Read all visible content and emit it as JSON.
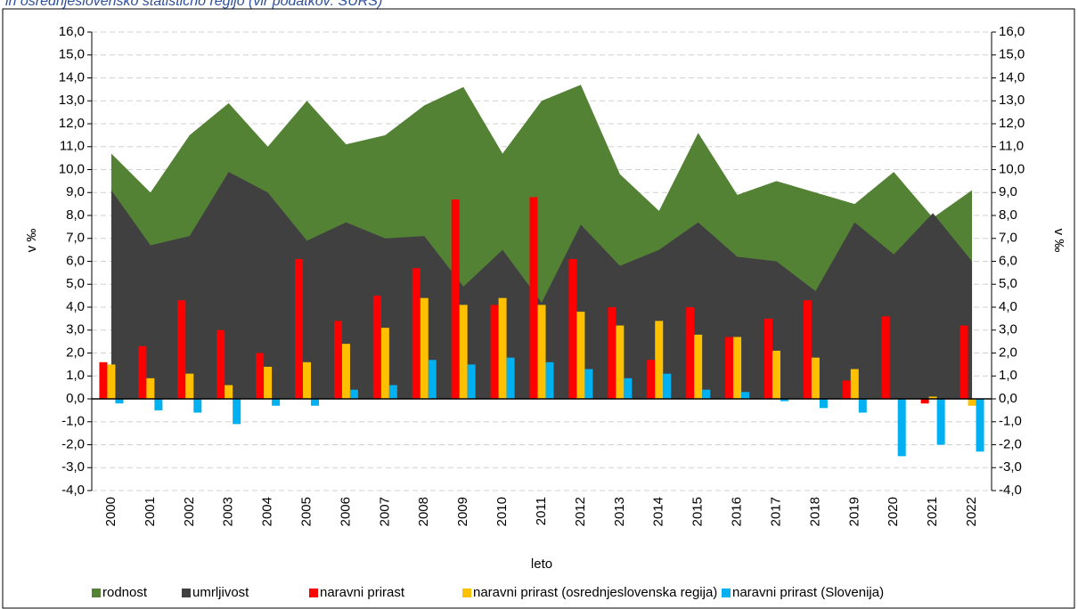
{
  "chart_data": {
    "type": "combo",
    "subtitle": "in osrednjeslovensko statistično regijo (vir podatkov: SURS)",
    "x_label": "leto",
    "y_label": "v ‰",
    "y2_label": "v ‰",
    "categories": [
      "2000",
      "2001",
      "2002",
      "2003",
      "2004",
      "2005",
      "2006",
      "2007",
      "2008",
      "2009",
      "2010",
      "2011",
      "2012",
      "2013",
      "2014",
      "2015",
      "2016",
      "2017",
      "2018",
      "2019",
      "2020",
      "2021",
      "2022"
    ],
    "series": [
      {
        "name": "rodnost",
        "kind": "area",
        "color": "#548235",
        "values": [
          10.7,
          9.0,
          11.5,
          12.9,
          11.0,
          13.0,
          11.1,
          11.5,
          12.8,
          13.6,
          10.7,
          13.0,
          13.7,
          9.8,
          8.2,
          11.6,
          8.9,
          9.5,
          9.0,
          8.5,
          9.9,
          7.9,
          9.1
        ]
      },
      {
        "name": "umrljivost",
        "kind": "area",
        "color": "#404040",
        "values": [
          9.1,
          6.7,
          7.1,
          9.9,
          9.0,
          6.9,
          7.7,
          7.0,
          7.1,
          4.9,
          6.5,
          4.2,
          7.6,
          5.8,
          6.5,
          7.7,
          6.2,
          6.0,
          4.7,
          7.7,
          6.3,
          8.1,
          6.0
        ]
      },
      {
        "name": "naravni prirast",
        "kind": "bar",
        "color": "#ff0000",
        "values": [
          1.6,
          2.3,
          4.3,
          3.0,
          2.0,
          6.1,
          3.4,
          4.5,
          5.7,
          8.7,
          4.1,
          8.8,
          6.1,
          4.0,
          1.7,
          4.0,
          2.7,
          3.5,
          4.3,
          0.8,
          3.6,
          -0.2,
          3.2
        ]
      },
      {
        "name": "naravni prirast (osrednjeslovenska regija)",
        "kind": "bar",
        "color": "#ffc000",
        "values": [
          1.5,
          0.9,
          1.1,
          0.6,
          1.4,
          1.6,
          2.4,
          3.1,
          4.4,
          4.1,
          4.4,
          4.1,
          3.8,
          3.2,
          3.4,
          2.8,
          2.7,
          2.1,
          1.8,
          1.3,
          0.0,
          0.1,
          -0.3
        ]
      },
      {
        "name": "naravni prirast (Slovenija)",
        "kind": "bar",
        "color": "#00b0f0",
        "values": [
          -0.2,
          -0.5,
          -0.6,
          -1.1,
          -0.3,
          -0.3,
          0.4,
          0.6,
          1.7,
          1.5,
          1.8,
          1.6,
          1.3,
          0.9,
          1.1,
          0.4,
          0.3,
          -0.1,
          -0.4,
          -0.6,
          -2.5,
          -2.0,
          -2.3
        ]
      }
    ],
    "ylim": [
      -4,
      16
    ],
    "yticks": [
      {
        "value": 16,
        "label": "16,0"
      },
      {
        "value": 15,
        "label": "15,0"
      },
      {
        "value": 14,
        "label": "14,0"
      },
      {
        "value": 13,
        "label": "13,0"
      },
      {
        "value": 12,
        "label": "12,0"
      },
      {
        "value": 11,
        "label": "11,0"
      },
      {
        "value": 10,
        "label": "10,0"
      },
      {
        "value": 9,
        "label": "9,0"
      },
      {
        "value": 8,
        "label": "8,0"
      },
      {
        "value": 7,
        "label": "7,0"
      },
      {
        "value": 6,
        "label": "6,0"
      },
      {
        "value": 5,
        "label": "5,0"
      },
      {
        "value": 4,
        "label": "4,0"
      },
      {
        "value": 3,
        "label": "3,0"
      },
      {
        "value": 2,
        "label": "2,0"
      },
      {
        "value": 1,
        "label": "1,0"
      },
      {
        "value": 0,
        "label": "0,0"
      },
      {
        "value": -1,
        "label": "-1,0"
      },
      {
        "value": -2,
        "label": "-2,0"
      },
      {
        "value": -3,
        "label": "-3,0"
      },
      {
        "value": -4,
        "label": "-4,0"
      }
    ],
    "grid": true,
    "legend": "bottom"
  }
}
